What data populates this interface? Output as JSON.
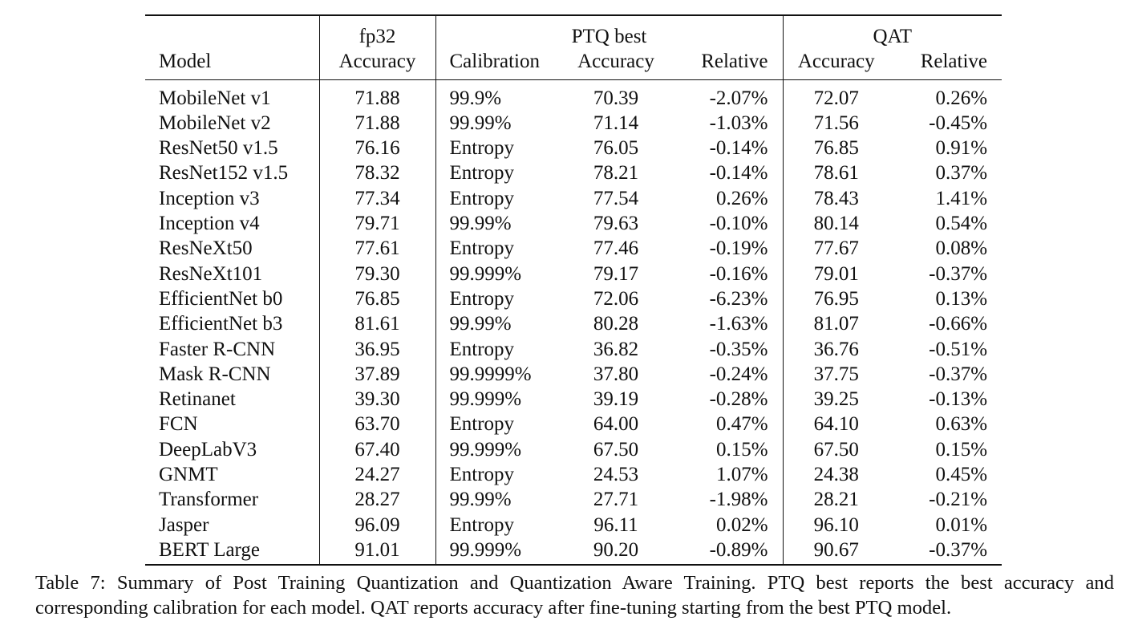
{
  "table": {
    "header": {
      "model": "Model",
      "fp32_group": "fp32",
      "fp32_accuracy": "Accuracy",
      "ptq_group": "PTQ best",
      "ptq_calibration": "Calibration",
      "ptq_accuracy": "Accuracy",
      "ptq_relative": "Relative",
      "qat_group": "QAT",
      "qat_accuracy": "Accuracy",
      "qat_relative": "Relative"
    },
    "rows": [
      {
        "model": "MobileNet v1",
        "fp32": "71.88",
        "calibration": "99.9%",
        "ptq_acc": "70.39",
        "ptq_rel": "-2.07%",
        "qat_acc": "72.07",
        "qat_rel": "0.26%"
      },
      {
        "model": "MobileNet v2",
        "fp32": "71.88",
        "calibration": "99.99%",
        "ptq_acc": "71.14",
        "ptq_rel": "-1.03%",
        "qat_acc": "71.56",
        "qat_rel": "-0.45%"
      },
      {
        "model": "ResNet50 v1.5",
        "fp32": "76.16",
        "calibration": "Entropy",
        "ptq_acc": "76.05",
        "ptq_rel": "-0.14%",
        "qat_acc": "76.85",
        "qat_rel": "0.91%"
      },
      {
        "model": "ResNet152 v1.5",
        "fp32": "78.32",
        "calibration": "Entropy",
        "ptq_acc": "78.21",
        "ptq_rel": "-0.14%",
        "qat_acc": "78.61",
        "qat_rel": "0.37%"
      },
      {
        "model": "Inception v3",
        "fp32": "77.34",
        "calibration": "Entropy",
        "ptq_acc": "77.54",
        "ptq_rel": "0.26%",
        "qat_acc": "78.43",
        "qat_rel": "1.41%"
      },
      {
        "model": "Inception v4",
        "fp32": "79.71",
        "calibration": "99.99%",
        "ptq_acc": "79.63",
        "ptq_rel": "-0.10%",
        "qat_acc": "80.14",
        "qat_rel": "0.54%"
      },
      {
        "model": "ResNeXt50",
        "fp32": "77.61",
        "calibration": "Entropy",
        "ptq_acc": "77.46",
        "ptq_rel": "-0.19%",
        "qat_acc": "77.67",
        "qat_rel": "0.08%"
      },
      {
        "model": "ResNeXt101",
        "fp32": "79.30",
        "calibration": "99.999%",
        "ptq_acc": "79.17",
        "ptq_rel": "-0.16%",
        "qat_acc": "79.01",
        "qat_rel": "-0.37%"
      },
      {
        "model": "EfficientNet b0",
        "fp32": "76.85",
        "calibration": "Entropy",
        "ptq_acc": "72.06",
        "ptq_rel": "-6.23%",
        "qat_acc": "76.95",
        "qat_rel": "0.13%"
      },
      {
        "model": "EfficientNet b3",
        "fp32": "81.61",
        "calibration": "99.99%",
        "ptq_acc": "80.28",
        "ptq_rel": "-1.63%",
        "qat_acc": "81.07",
        "qat_rel": "-0.66%"
      },
      {
        "model": "Faster R-CNN",
        "fp32": "36.95",
        "calibration": "Entropy",
        "ptq_acc": "36.82",
        "ptq_rel": "-0.35%",
        "qat_acc": "36.76",
        "qat_rel": "-0.51%"
      },
      {
        "model": "Mask R-CNN",
        "fp32": "37.89",
        "calibration": "99.9999%",
        "ptq_acc": "37.80",
        "ptq_rel": "-0.24%",
        "qat_acc": "37.75",
        "qat_rel": "-0.37%"
      },
      {
        "model": "Retinanet",
        "fp32": "39.30",
        "calibration": "99.999%",
        "ptq_acc": "39.19",
        "ptq_rel": "-0.28%",
        "qat_acc": "39.25",
        "qat_rel": "-0.13%"
      },
      {
        "model": "FCN",
        "fp32": "63.70",
        "calibration": "Entropy",
        "ptq_acc": "64.00",
        "ptq_rel": "0.47%",
        "qat_acc": "64.10",
        "qat_rel": "0.63%"
      },
      {
        "model": "DeepLabV3",
        "fp32": "67.40",
        "calibration": "99.999%",
        "ptq_acc": "67.50",
        "ptq_rel": "0.15%",
        "qat_acc": "67.50",
        "qat_rel": "0.15%"
      },
      {
        "model": "GNMT",
        "fp32": "24.27",
        "calibration": "Entropy",
        "ptq_acc": "24.53",
        "ptq_rel": "1.07%",
        "qat_acc": "24.38",
        "qat_rel": "0.45%"
      },
      {
        "model": "Transformer",
        "fp32": "28.27",
        "calibration": "99.99%",
        "ptq_acc": "27.71",
        "ptq_rel": "-1.98%",
        "qat_acc": "28.21",
        "qat_rel": "-0.21%"
      },
      {
        "model": "Jasper",
        "fp32": "96.09",
        "calibration": "Entropy",
        "ptq_acc": "96.11",
        "ptq_rel": "0.02%",
        "qat_acc": "96.10",
        "qat_rel": "0.01%"
      },
      {
        "model": "BERT Large",
        "fp32": "91.01",
        "calibration": "99.999%",
        "ptq_acc": "90.20",
        "ptq_rel": "-0.89%",
        "qat_acc": "90.67",
        "qat_rel": "-0.37%"
      }
    ]
  },
  "caption": "Table 7: Summary of Post Training Quantization and Quantization Aware Training. PTQ best reports the best accuracy and corresponding calibration for each model. QAT reports accuracy after fine-tuning starting from the best PTQ model."
}
